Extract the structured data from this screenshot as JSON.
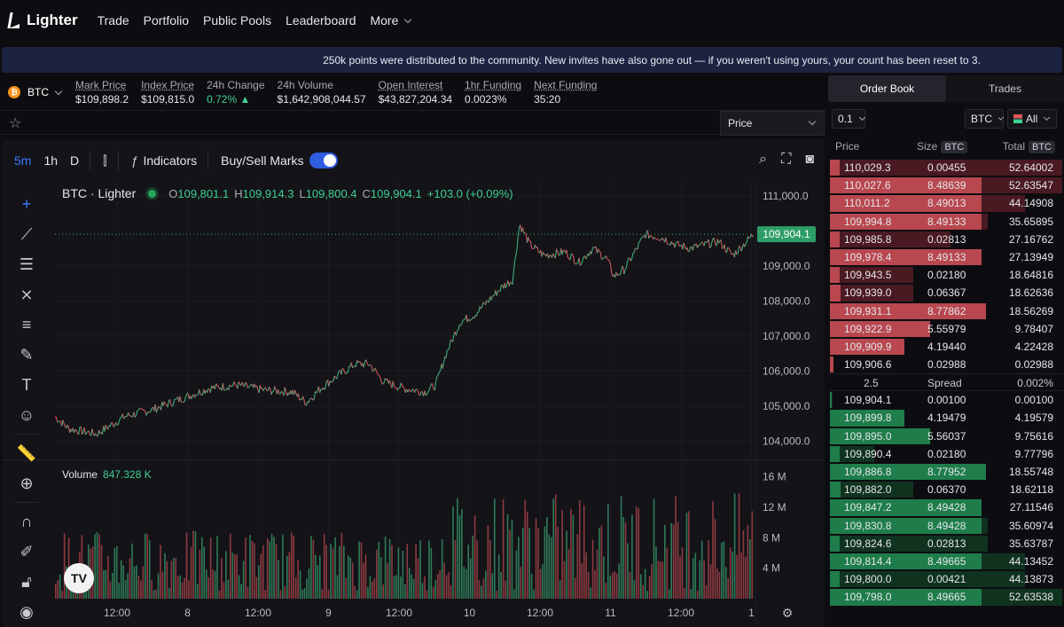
{
  "nav": {
    "logo": "Lighter",
    "items": [
      "Trade",
      "Portfolio",
      "Public Pools",
      "Leaderboard"
    ],
    "more": "More"
  },
  "banner": "250k points were distributed to the community. New invites have also gone out — if you weren't using yours, your count has been reset to 3.",
  "market": {
    "symbol": "BTC",
    "stats": [
      {
        "label": "Mark Price",
        "value": "$109,898.2",
        "underline": true
      },
      {
        "label": "Index Price",
        "value": "$109,815.0",
        "underline": true
      },
      {
        "label": "24h Change",
        "value": "0.72% ▲",
        "underline": false,
        "positive": true
      },
      {
        "label": "24h Volume",
        "value": "$1,642,908,044.57",
        "underline": false
      },
      {
        "label": "Open Interest",
        "value": "$43,827,204.34",
        "underline": true
      },
      {
        "label": "1hr Funding",
        "value": "0.0023%",
        "underline": true
      },
      {
        "label": "Next Funding",
        "value": "35:20",
        "underline": true
      }
    ],
    "price_select": "Price"
  },
  "chart_toolbar": {
    "timeframes": [
      "5m",
      "1h",
      "D"
    ],
    "active_timeframe": "5m",
    "indicators": "Indicators",
    "buysell": "Buy/Sell Marks",
    "buysell_on": true
  },
  "chart_legend": {
    "title": "BTC · Lighter",
    "o_label": "O",
    "o": "109,801.1",
    "h_label": "H",
    "h": "109,914.3",
    "l_label": "L",
    "l": "109,800.4",
    "c_label": "C",
    "c": "109,904.1",
    "change": "+103.0 (+0.09%)"
  },
  "volume_legend": {
    "label": "Volume",
    "value": "847.328 K"
  },
  "chart_data": {
    "type": "line",
    "title": "BTC · Lighter",
    "y_ticks": [
      "111,000.0",
      "109,000.0",
      "108,000.0",
      "107,000.0",
      "106,000.0",
      "105,000.0",
      "104,000.0"
    ],
    "y_tick_values": [
      111000,
      109000,
      108000,
      107000,
      106000,
      105000,
      104000
    ],
    "ylim": [
      103500,
      111400
    ],
    "x_ticks": [
      "12:00",
      "8",
      "12:00",
      "9",
      "12:00",
      "10",
      "12:00",
      "11",
      "12:00",
      "1"
    ],
    "last_price_label": "109,904.1",
    "last_price": 109904.1,
    "volume_ticks": [
      "16 M",
      "12 M",
      "8 M",
      "4 M"
    ],
    "volume_tick_values": [
      16,
      12,
      8,
      4
    ],
    "volume_ylim": [
      0,
      17
    ],
    "price_path": [
      {
        "t": 0,
        "p": 104700
      },
      {
        "t": 0.02,
        "p": 104350
      },
      {
        "t": 0.06,
        "p": 104200
      },
      {
        "t": 0.1,
        "p": 104700
      },
      {
        "t": 0.14,
        "p": 104900
      },
      {
        "t": 0.18,
        "p": 105200
      },
      {
        "t": 0.22,
        "p": 105500
      },
      {
        "t": 0.26,
        "p": 105600
      },
      {
        "t": 0.3,
        "p": 105450
      },
      {
        "t": 0.34,
        "p": 105400
      },
      {
        "t": 0.36,
        "p": 105100
      },
      {
        "t": 0.38,
        "p": 105500
      },
      {
        "t": 0.4,
        "p": 105800
      },
      {
        "t": 0.43,
        "p": 106200
      },
      {
        "t": 0.45,
        "p": 106200
      },
      {
        "t": 0.47,
        "p": 105700
      },
      {
        "t": 0.5,
        "p": 105500
      },
      {
        "t": 0.53,
        "p": 105400
      },
      {
        "t": 0.545,
        "p": 105600
      },
      {
        "t": 0.56,
        "p": 106500
      },
      {
        "t": 0.58,
        "p": 107400
      },
      {
        "t": 0.6,
        "p": 107600
      },
      {
        "t": 0.62,
        "p": 108000
      },
      {
        "t": 0.64,
        "p": 108400
      },
      {
        "t": 0.655,
        "p": 108600
      },
      {
        "t": 0.665,
        "p": 110200
      },
      {
        "t": 0.68,
        "p": 109600
      },
      {
        "t": 0.7,
        "p": 109300
      },
      {
        "t": 0.73,
        "p": 109400
      },
      {
        "t": 0.75,
        "p": 109100
      },
      {
        "t": 0.77,
        "p": 109500
      },
      {
        "t": 0.79,
        "p": 109200
      },
      {
        "t": 0.8,
        "p": 108700
      },
      {
        "t": 0.815,
        "p": 108900
      },
      {
        "t": 0.83,
        "p": 109400
      },
      {
        "t": 0.845,
        "p": 109900
      },
      {
        "t": 0.87,
        "p": 109800
      },
      {
        "t": 0.89,
        "p": 109600
      },
      {
        "t": 0.91,
        "p": 109500
      },
      {
        "t": 0.93,
        "p": 109600
      },
      {
        "t": 0.95,
        "p": 109700
      },
      {
        "t": 0.97,
        "p": 109300
      },
      {
        "t": 0.985,
        "p": 109600
      },
      {
        "t": 1.0,
        "p": 109904
      }
    ]
  },
  "orderbook": {
    "tabs": [
      "Order Book",
      "Trades"
    ],
    "active_tab": "Order Book",
    "tick": "0.1",
    "unit": "BTC",
    "filter": "All",
    "headers": {
      "price": "Price",
      "size": "Size",
      "total": "Total",
      "unit": "BTC"
    },
    "asks": [
      {
        "price": "110,029.3",
        "size": "0.00455",
        "total": "52.64002",
        "depth": 1.0,
        "size_frac": 0.06
      },
      {
        "price": "110,027.6",
        "size": "8.48639",
        "total": "52.63547",
        "depth": 1.0,
        "size_frac": 0.97
      },
      {
        "price": "110,011.2",
        "size": "8.49013",
        "total": "44.14908",
        "depth": 0.84,
        "size_frac": 0.97
      },
      {
        "price": "109,994.8",
        "size": "8.49133",
        "total": "35.65895",
        "depth": 0.68,
        "size_frac": 0.97
      },
      {
        "price": "109,985.8",
        "size": "0.02813",
        "total": "27.16762",
        "depth": 0.52,
        "size_frac": 0.06
      },
      {
        "price": "109,978.4",
        "size": "8.49133",
        "total": "27.13949",
        "depth": 0.52,
        "size_frac": 0.97
      },
      {
        "price": "109,943.5",
        "size": "0.02180",
        "total": "18.64816",
        "depth": 0.36,
        "size_frac": 0.06
      },
      {
        "price": "109,939.0",
        "size": "0.06367",
        "total": "18.62636",
        "depth": 0.36,
        "size_frac": 0.07
      },
      {
        "price": "109,931.1",
        "size": "8.77862",
        "total": "18.56269",
        "depth": 0.36,
        "size_frac": 1.0
      },
      {
        "price": "109,922.9",
        "size": "5.55979",
        "total": "9.78407",
        "depth": 0.19,
        "size_frac": 0.64
      },
      {
        "price": "109,909.9",
        "size": "4.19440",
        "total": "4.22428",
        "depth": 0.09,
        "size_frac": 0.48
      },
      {
        "price": "109,906.6",
        "size": "0.02988",
        "total": "0.02988",
        "depth": 0.01,
        "size_frac": 0.02
      }
    ],
    "spread": {
      "value": "2.5",
      "label": "Spread",
      "pct": "0.002%"
    },
    "bids": [
      {
        "price": "109,904.1",
        "size": "0.00100",
        "total": "0.00100",
        "depth": 0.01,
        "size_frac": 0.01
      },
      {
        "price": "109,899.8",
        "size": "4.19479",
        "total": "4.19579",
        "depth": 0.09,
        "size_frac": 0.48
      },
      {
        "price": "109,895.0",
        "size": "5.56037",
        "total": "9.75616",
        "depth": 0.19,
        "size_frac": 0.64
      },
      {
        "price": "109,890.4",
        "size": "0.02180",
        "total": "9.77796",
        "depth": 0.19,
        "size_frac": 0.06
      },
      {
        "price": "109,886.8",
        "size": "8.77952",
        "total": "18.55748",
        "depth": 0.36,
        "size_frac": 1.0
      },
      {
        "price": "109,882.0",
        "size": "0.06370",
        "total": "18.62118",
        "depth": 0.36,
        "size_frac": 0.07
      },
      {
        "price": "109,847.2",
        "size": "8.49428",
        "total": "27.11546",
        "depth": 0.52,
        "size_frac": 0.97
      },
      {
        "price": "109,830.8",
        "size": "8.49428",
        "total": "35.60974",
        "depth": 0.68,
        "size_frac": 0.97
      },
      {
        "price": "109,824.6",
        "size": "0.02813",
        "total": "35.63787",
        "depth": 0.68,
        "size_frac": 0.06
      },
      {
        "price": "109,814.4",
        "size": "8.49665",
        "total": "44.13452",
        "depth": 0.84,
        "size_frac": 0.97
      },
      {
        "price": "109,800.0",
        "size": "0.00421",
        "total": "44.13873",
        "depth": 0.84,
        "size_frac": 0.06
      },
      {
        "price": "109,798.0",
        "size": "8.49665",
        "total": "52.63538",
        "depth": 1.0,
        "size_frac": 0.97
      }
    ]
  },
  "colors": {
    "accent": "#3d7bff",
    "up": "#3fcf8e",
    "down": "#e0575f",
    "banner": "#1c2340"
  }
}
